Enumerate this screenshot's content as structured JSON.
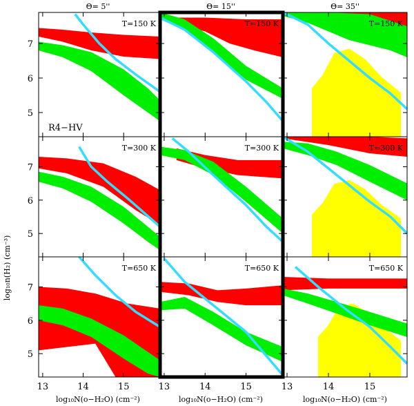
{
  "chart_data": {
    "type": "area",
    "grid_description": "3x3 panel grid of excitation diagrams",
    "column_titles": [
      "Θ= 5''",
      "Θ= 15''",
      "Θ= 35''"
    ],
    "row_labels": [
      "T=150 K",
      "T=300 K",
      "T=650 K"
    ],
    "source_label": "R4−HV",
    "xlabel": "log₁₀N(o−H₂O)  (cm⁻²)",
    "ylabel": "log₁₀n(H₂)  (cm⁻³)",
    "xlim": [
      12.9,
      15.9
    ],
    "ylim": [
      4.3,
      7.9
    ],
    "xticks": [
      "13",
      "14",
      "15"
    ],
    "yticks": [
      "5",
      "6",
      "7"
    ],
    "highlighted_panel": "Θ= 15''",
    "colors": {
      "red": "#ff0000",
      "green": "#00ee00",
      "yellow": "#ffff00",
      "cyan": "#33ddff",
      "frame": "#000000"
    },
    "panels": [
      {
        "theta": "Θ= 5''",
        "temp": "T=150 K",
        "red": {
          "upper": [
            [
              12.9,
              7.45
            ],
            [
              13.5,
              7.4
            ],
            [
              14.2,
              7.32
            ],
            [
              15.0,
              7.25
            ],
            [
              15.9,
              7.2
            ]
          ],
          "lower": [
            [
              12.9,
              7.2
            ],
            [
              13.5,
              7.05
            ],
            [
              14.2,
              6.8
            ],
            [
              15.0,
              6.62
            ],
            [
              15.9,
              6.55
            ]
          ]
        },
        "green": {
          "upper": [
            [
              12.9,
              7.05
            ],
            [
              13.5,
              6.95
            ],
            [
              14.2,
              6.75
            ],
            [
              15.0,
              6.25
            ],
            [
              15.6,
              5.7
            ],
            [
              15.9,
              5.35
            ]
          ],
          "lower": [
            [
              12.9,
              6.8
            ],
            [
              13.5,
              6.6
            ],
            [
              14.2,
              6.2
            ],
            [
              15.0,
              5.5
            ],
            [
              15.6,
              5.0
            ],
            [
              15.9,
              4.75
            ]
          ]
        },
        "cyan": [
          [
            13.8,
            7.85
          ],
          [
            14.0,
            7.55
          ],
          [
            14.4,
            7.0
          ],
          [
            14.8,
            6.55
          ],
          [
            15.3,
            6.1
          ],
          [
            15.9,
            5.6
          ]
        ],
        "yellow": null
      },
      {
        "theta": "Θ= 15''",
        "temp": "T=150 K",
        "red": {
          "upper": [
            [
              13.2,
              7.75
            ],
            [
              14.0,
              7.75
            ],
            [
              15.0,
              7.7
            ],
            [
              15.9,
              7.7
            ]
          ],
          "lower": [
            [
              13.2,
              7.6
            ],
            [
              14.0,
              7.35
            ],
            [
              14.6,
              7.0
            ],
            [
              15.2,
              6.8
            ],
            [
              15.9,
              6.6
            ]
          ]
        },
        "green": {
          "upper": [
            [
              12.9,
              7.9
            ],
            [
              13.5,
              7.7
            ],
            [
              14.2,
              7.15
            ],
            [
              15.0,
              6.35
            ],
            [
              15.9,
              5.7
            ]
          ],
          "lower": [
            [
              12.9,
              7.7
            ],
            [
              13.5,
              7.4
            ],
            [
              14.2,
              6.75
            ],
            [
              15.0,
              5.95
            ],
            [
              15.9,
              5.4
            ]
          ]
        },
        "cyan": [
          [
            12.9,
            7.75
          ],
          [
            13.5,
            7.4
          ],
          [
            14.2,
            6.75
          ],
          [
            15.0,
            5.9
          ],
          [
            15.5,
            5.3
          ],
          [
            15.9,
            4.75
          ]
        ],
        "yellow": null
      },
      {
        "theta": "Θ= 35''",
        "temp": "T=150 K",
        "red": {
          "upper": [
            [
              12.9,
              7.9
            ],
            [
              14.0,
              7.9
            ],
            [
              15.0,
              7.9
            ],
            [
              15.9,
              7.9
            ]
          ],
          "lower": [
            [
              12.9,
              7.85
            ],
            [
              14.0,
              7.8
            ],
            [
              15.0,
              7.65
            ],
            [
              15.9,
              7.4
            ]
          ]
        },
        "green": {
          "upper": [
            [
              12.9,
              7.9
            ],
            [
              14.0,
              7.9
            ],
            [
              15.0,
              7.85
            ],
            [
              15.9,
              7.5
            ]
          ],
          "lower": [
            [
              12.9,
              7.8
            ],
            [
              13.5,
              7.6
            ],
            [
              14.0,
              7.35
            ],
            [
              14.5,
              7.1
            ],
            [
              15.0,
              6.95
            ],
            [
              15.5,
              6.8
            ],
            [
              15.9,
              6.6
            ]
          ]
        },
        "cyan": [
          [
            12.9,
            7.9
          ],
          [
            13.5,
            7.55
          ],
          [
            14.0,
            7.0
          ],
          [
            14.5,
            6.5
          ],
          [
            15.0,
            6.0
          ],
          [
            15.5,
            5.55
          ],
          [
            15.9,
            5.1
          ]
        ],
        "yellow": {
          "left": 13.6,
          "right": 15.75,
          "bottom": 4.3,
          "top": 6.85
        }
      },
      {
        "theta": "Θ= 5''",
        "temp": "T=300 K",
        "red": {
          "upper": [
            [
              12.9,
              7.3
            ],
            [
              13.6,
              7.25
            ],
            [
              14.5,
              7.1
            ],
            [
              15.3,
              6.7
            ],
            [
              15.9,
              6.3
            ]
          ],
          "lower": [
            [
              12.9,
              6.95
            ],
            [
              13.6,
              6.8
            ],
            [
              14.5,
              6.4
            ],
            [
              15.3,
              5.7
            ],
            [
              15.9,
              5.25
            ]
          ]
        },
        "green": {
          "upper": [
            [
              12.9,
              6.85
            ],
            [
              13.5,
              6.7
            ],
            [
              14.2,
              6.4
            ],
            [
              15.0,
              5.8
            ],
            [
              15.6,
              5.2
            ],
            [
              15.9,
              4.9
            ]
          ],
          "lower": [
            [
              12.9,
              6.55
            ],
            [
              13.5,
              6.35
            ],
            [
              14.2,
              5.95
            ],
            [
              15.0,
              5.3
            ],
            [
              15.6,
              4.75
            ],
            [
              15.9,
              4.5
            ]
          ]
        },
        "cyan": [
          [
            13.9,
            7.6
          ],
          [
            14.2,
            7.0
          ],
          [
            14.6,
            6.55
          ],
          [
            15.1,
            6.05
          ],
          [
            15.9,
            5.2
          ]
        ],
        "yellow": null
      },
      {
        "theta": "Θ= 15''",
        "temp": "T=300 K",
        "red": {
          "upper": [
            [
              13.3,
              7.55
            ],
            [
              14.0,
              7.35
            ],
            [
              14.8,
              7.2
            ],
            [
              15.9,
              7.2
            ]
          ],
          "lower": [
            [
              13.3,
              7.2
            ],
            [
              14.0,
              6.95
            ],
            [
              14.8,
              6.75
            ],
            [
              15.9,
              6.65
            ]
          ]
        },
        "green": {
          "upper": [
            [
              12.9,
              7.6
            ],
            [
              13.5,
              7.5
            ],
            [
              14.2,
              7.15
            ],
            [
              15.0,
              6.4
            ],
            [
              15.9,
              5.45
            ]
          ],
          "lower": [
            [
              12.9,
              7.35
            ],
            [
              13.5,
              7.2
            ],
            [
              14.2,
              6.75
            ],
            [
              15.0,
              5.95
            ],
            [
              15.9,
              5.0
            ]
          ]
        },
        "cyan": [
          [
            13.2,
            7.85
          ],
          [
            13.6,
            7.45
          ],
          [
            14.2,
            6.75
          ],
          [
            15.0,
            5.85
          ],
          [
            15.5,
            5.2
          ],
          [
            15.9,
            4.75
          ]
        ],
        "yellow": null
      },
      {
        "theta": "Θ= 35''",
        "temp": "T=300 K",
        "red": {
          "upper": [
            [
              12.9,
              7.9
            ],
            [
              14.0,
              7.9
            ],
            [
              15.0,
              7.9
            ],
            [
              15.9,
              7.85
            ]
          ],
          "lower": [
            [
              12.9,
              7.85
            ],
            [
              14.0,
              7.65
            ],
            [
              15.0,
              7.4
            ],
            [
              15.9,
              7.3
            ]
          ]
        },
        "green": {
          "upper": [
            [
              12.9,
              7.75
            ],
            [
              13.5,
              7.7
            ],
            [
              14.2,
              7.45
            ],
            [
              15.0,
              7.05
            ],
            [
              15.9,
              6.5
            ]
          ],
          "lower": [
            [
              12.9,
              7.55
            ],
            [
              13.5,
              7.35
            ],
            [
              14.2,
              7.05
            ],
            [
              15.0,
              6.55
            ],
            [
              15.9,
              6.0
            ]
          ]
        },
        "cyan": [
          [
            12.9,
            7.9
          ],
          [
            13.5,
            7.45
          ],
          [
            14.0,
            6.95
          ],
          [
            14.5,
            6.45
          ],
          [
            15.0,
            5.95
          ],
          [
            15.5,
            5.5
          ],
          [
            15.9,
            5.0
          ]
        ],
        "yellow": {
          "left": 13.6,
          "right": 15.75,
          "bottom": 4.3,
          "top": 6.6
        }
      },
      {
        "theta": "Θ= 5''",
        "temp": "T=650 K",
        "red": {
          "upper": [
            [
              12.9,
              7.0
            ],
            [
              13.6,
              6.95
            ],
            [
              14.3,
              6.8
            ],
            [
              15.1,
              6.5
            ],
            [
              15.9,
              6.35
            ]
          ],
          "lower": [
            [
              12.9,
              5.1
            ],
            [
              13.6,
              5.2
            ],
            [
              14.3,
              5.3
            ],
            [
              14.8,
              4.3
            ],
            [
              15.9,
              4.3
            ]
          ]
        },
        "green": {
          "upper": [
            [
              12.9,
              6.45
            ],
            [
              13.5,
              6.35
            ],
            [
              14.2,
              6.05
            ],
            [
              15.0,
              5.55
            ],
            [
              15.6,
              5.05
            ],
            [
              15.9,
              4.8
            ]
          ],
          "lower": [
            [
              12.9,
              6.0
            ],
            [
              13.5,
              5.85
            ],
            [
              14.2,
              5.5
            ],
            [
              15.0,
              4.85
            ],
            [
              15.6,
              4.4
            ],
            [
              15.9,
              4.3
            ]
          ]
        },
        "cyan": [
          [
            13.9,
            7.9
          ],
          [
            14.3,
            7.35
          ],
          [
            14.8,
            6.75
          ],
          [
            15.3,
            6.25
          ],
          [
            15.9,
            5.8
          ]
        ],
        "yellow": null
      },
      {
        "theta": "Θ= 15''",
        "temp": "T=650 K",
        "red": {
          "upper": [
            [
              12.9,
              7.15
            ],
            [
              13.6,
              7.1
            ],
            [
              14.3,
              6.9
            ],
            [
              15.0,
              6.95
            ],
            [
              15.9,
              7.05
            ]
          ],
          "lower": [
            [
              12.9,
              6.85
            ],
            [
              13.6,
              6.75
            ],
            [
              14.3,
              6.55
            ],
            [
              15.0,
              6.45
            ],
            [
              15.9,
              6.45
            ]
          ]
        },
        "green": {
          "upper": [
            [
              12.9,
              6.55
            ],
            [
              13.5,
              6.7
            ],
            [
              14.2,
              6.25
            ],
            [
              15.0,
              5.65
            ],
            [
              15.9,
              5.2
            ]
          ],
          "lower": [
            [
              12.9,
              6.3
            ],
            [
              13.5,
              6.35
            ],
            [
              14.2,
              5.85
            ],
            [
              15.0,
              5.25
            ],
            [
              15.9,
              4.75
            ]
          ]
        },
        "cyan": [
          [
            13.0,
            7.85
          ],
          [
            13.5,
            7.15
          ],
          [
            14.2,
            6.45
          ],
          [
            15.0,
            5.65
          ],
          [
            15.9,
            4.35
          ]
        ],
        "yellow": null
      },
      {
        "theta": "Θ= 35''",
        "temp": "T=650 K",
        "red": {
          "upper": [
            [
              12.9,
              7.3
            ],
            [
              14.0,
              7.25
            ],
            [
              15.0,
              7.25
            ],
            [
              15.9,
              7.25
            ]
          ],
          "lower": [
            [
              12.9,
              6.9
            ],
            [
              14.0,
              6.95
            ],
            [
              15.0,
              6.95
            ],
            [
              15.9,
              6.95
            ]
          ]
        },
        "green": {
          "upper": [
            [
              12.9,
              6.95
            ],
            [
              13.5,
              6.8
            ],
            [
              14.2,
              6.55
            ],
            [
              15.0,
              6.25
            ],
            [
              15.9,
              5.9
            ]
          ],
          "lower": [
            [
              12.9,
              6.75
            ],
            [
              13.5,
              6.5
            ],
            [
              14.2,
              6.2
            ],
            [
              15.0,
              5.85
            ],
            [
              15.9,
              5.5
            ]
          ]
        },
        "cyan": [
          [
            13.2,
            7.6
          ],
          [
            13.8,
            6.95
          ],
          [
            14.4,
            6.35
          ],
          [
            15.0,
            5.8
          ],
          [
            15.5,
            5.2
          ],
          [
            15.9,
            4.7
          ]
        ],
        "yellow": {
          "left": 13.75,
          "right": 15.75,
          "bottom": 4.3,
          "top": 6.5
        }
      }
    ]
  }
}
